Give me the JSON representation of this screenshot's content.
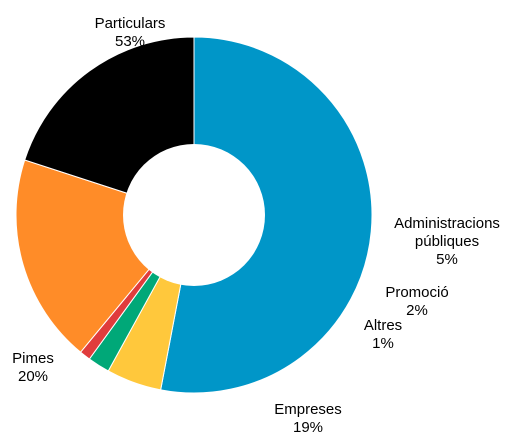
{
  "chart_data": {
    "type": "pie",
    "donut": true,
    "start_angle_deg": 90,
    "direction": "clockwise",
    "slices": [
      {
        "name": "Particulars",
        "lines": [
          "Particulars"
        ],
        "value": 53,
        "label": "53%",
        "color": "#0096C8"
      },
      {
        "name": "Administracions públiques",
        "lines": [
          "Administracions",
          "públiques"
        ],
        "value": 5,
        "label": "5%",
        "color": "#FFC83C"
      },
      {
        "name": "Promoció",
        "lines": [
          "Promoció"
        ],
        "value": 2,
        "label": "2%",
        "color": "#00A878"
      },
      {
        "name": "Altres",
        "lines": [
          "Altres"
        ],
        "value": 1,
        "label": "1%",
        "color": "#E03C3C"
      },
      {
        "name": "Empreses",
        "lines": [
          "Empreses"
        ],
        "value": 19,
        "label": "19%",
        "color": "#FF8C28"
      },
      {
        "name": "Pimes",
        "lines": [
          "Pimes"
        ],
        "value": 20,
        "label": "20%",
        "color": "#000000"
      }
    ]
  }
}
